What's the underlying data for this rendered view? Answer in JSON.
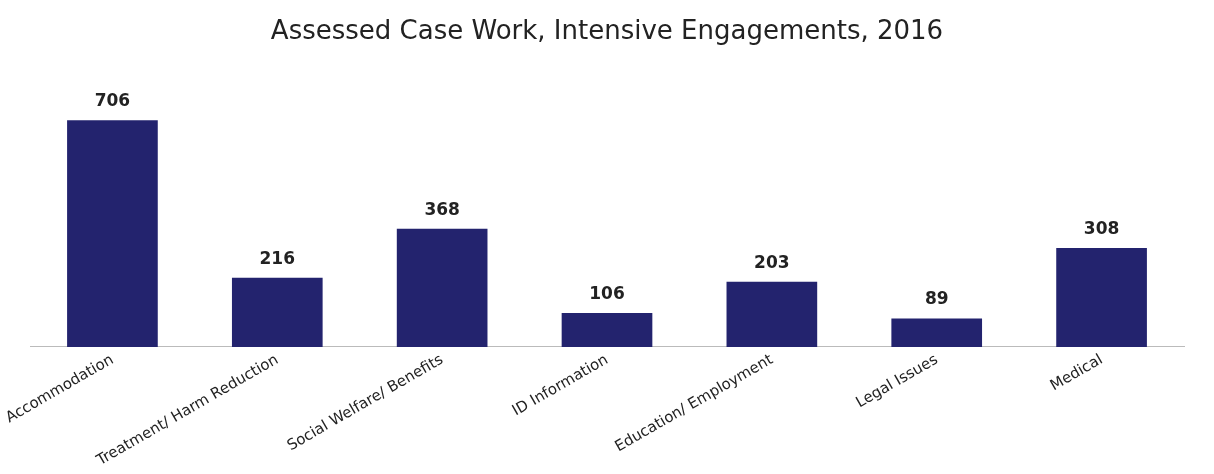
{
  "chart_data": {
    "type": "bar",
    "title": "Assessed Case Work, Intensive Engagements, 2016",
    "categories": [
      "Accommodation",
      "Treatment/ Harm Reduction",
      "Social Welfare/ Benefits",
      "ID Information",
      "Education/ Employment",
      "Legal Issues",
      "Medical"
    ],
    "values": [
      706,
      216,
      368,
      106,
      203,
      89,
      308
    ],
    "color": "#23236e",
    "data_labels": true,
    "tick_labels": "x",
    "grid": false,
    "legend": false
  }
}
